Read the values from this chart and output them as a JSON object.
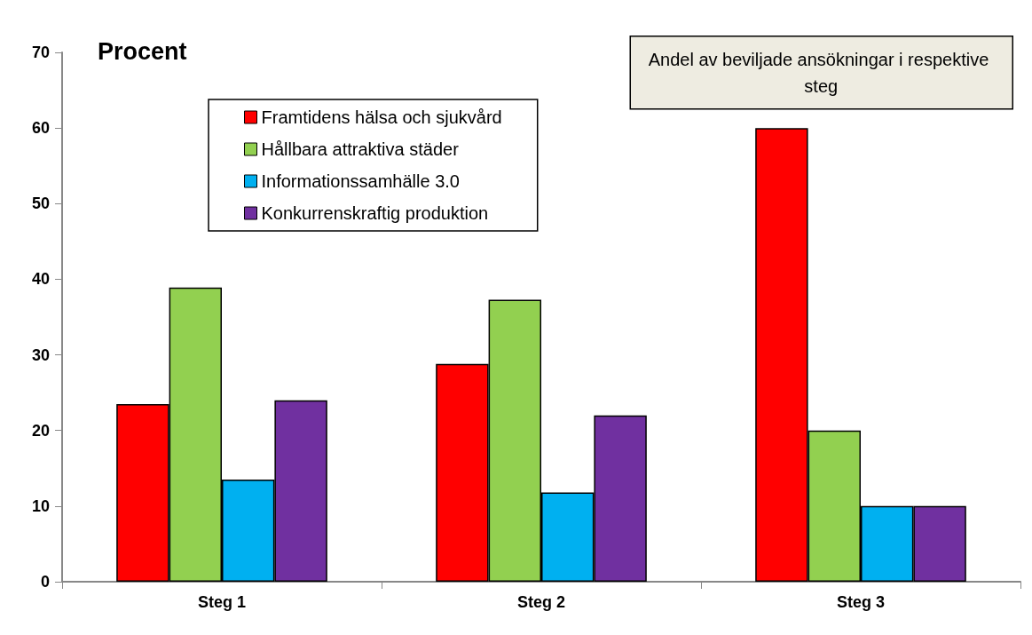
{
  "chart_data": {
    "type": "bar",
    "ylabel": "Procent",
    "annotations": [
      "Andel av beviljade ansökningar i respektive steg"
    ],
    "categories": [
      "Steg 1",
      "Steg 2",
      "Steg 3"
    ],
    "series": [
      {
        "name": "Framtidens hälsa och sjukvård",
        "color": "#ff0000",
        "values": [
          23.5,
          28.8,
          60
        ]
      },
      {
        "name": "Hållbara attraktiva städer",
        "color": "#92d050",
        "values": [
          38.9,
          37.3,
          20
        ]
      },
      {
        "name": "Informationssamhälle 3.0",
        "color": "#00b0f0",
        "values": [
          13.5,
          11.8,
          10
        ]
      },
      {
        "name": "Konkurrenskraftig produktion",
        "color": "#7030a0",
        "values": [
          24,
          22,
          10
        ]
      }
    ],
    "ylim": [
      0,
      70
    ],
    "yticks": [
      0,
      10,
      20,
      30,
      40,
      50,
      60,
      70
    ],
    "grid": false,
    "legend": "top"
  }
}
